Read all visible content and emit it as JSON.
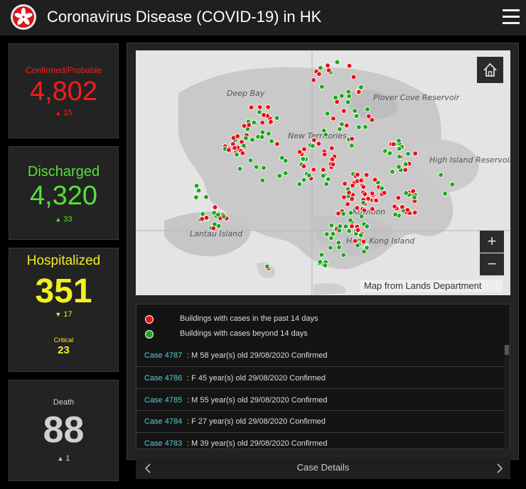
{
  "header": {
    "title": "Coronavirus Disease (COVID-19) in HK",
    "logo_icon": "hk-bauhinia-emblem",
    "menu_icon": "hamburger-menu-icon"
  },
  "stats": {
    "confirmed": {
      "label": "Confirmed/Probable",
      "value": "4,802",
      "delta_icon": "triangle-up-icon",
      "delta_symbol": "▲",
      "delta": "15",
      "color": "#ff1a1a"
    },
    "discharged": {
      "label": "Discharged",
      "value": "4,320",
      "delta_icon": "triangle-up-icon",
      "delta_symbol": "▲",
      "delta": "33",
      "color": "#55e236"
    },
    "hospitalized": {
      "label": "Hospitalized",
      "value": "351",
      "delta_icon": "triangle-down-icon",
      "delta_symbol": "▼",
      "delta": "17",
      "critical_label": "Critical",
      "critical_value": "23",
      "color": "#f2f01d"
    },
    "death": {
      "label": "Death",
      "value": "88",
      "delta_icon": "triangle-up-icon",
      "delta_symbol": "▲",
      "delta": "1",
      "color": "#cfcfcf"
    }
  },
  "map": {
    "place_labels": [
      "Deep Bay",
      "New Territories",
      "Plover Cove Reservoir",
      "High Island Reservoir",
      "Lantau Island",
      "Kowloon",
      "Hong Kong Island"
    ],
    "credit": "Map from Lands Department",
    "home_icon": "home-icon",
    "zoom_in_label": "+",
    "zoom_out_label": "−",
    "recent_color": "#e8121b",
    "older_color": "#1fa61f"
  },
  "legend": [
    {
      "label": "Buildings with cases in the past 14 days",
      "color": "#e8121b"
    },
    {
      "label": "Buildings with cases beyond 14 days",
      "color": "#1fa61f"
    }
  ],
  "cases": [
    {
      "id": "Case 4787",
      "info": ": M  58 year(s) old  29/08/2020 Confirmed"
    },
    {
      "id": "Case 4786",
      "info": ": F  45 year(s) old  29/08/2020 Confirmed"
    },
    {
      "id": "Case 4785",
      "info": ": M  55 year(s) old  29/08/2020 Confirmed"
    },
    {
      "id": "Case 4784",
      "info": ": F  27 year(s) old  29/08/2020 Confirmed"
    },
    {
      "id": "Case 4783",
      "info": ": M  39 year(s) old  29/08/2020 Confirmed"
    }
  ],
  "footer": {
    "title": "Case Details",
    "prev_icon": "chevron-left-icon",
    "next_icon": "chevron-right-icon"
  }
}
